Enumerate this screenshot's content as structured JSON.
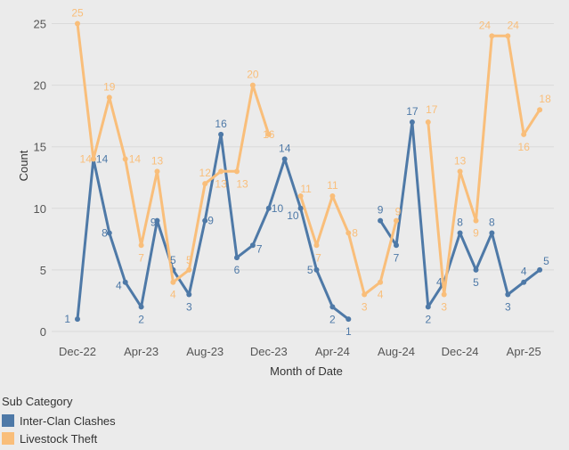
{
  "chart_data": {
    "type": "line",
    "title": "",
    "xlabel": "Month of Date",
    "ylabel": "Count",
    "ylim": [
      0,
      26
    ],
    "yticks": [
      0,
      5,
      10,
      15,
      20,
      25
    ],
    "grid": true,
    "x": [
      "Dec-22",
      "Jan-23",
      "Feb-23",
      "Mar-23",
      "Apr-23",
      "May-23",
      "Jun-23",
      "Jul-23",
      "Aug-23",
      "Sep-23",
      "Oct-23",
      "Nov-23",
      "Dec-23",
      "Jan-24",
      "Feb-24",
      "Mar-24",
      "Apr-24",
      "May-24",
      "Jun-24",
      "Jul-24",
      "Aug-24",
      "Sep-24",
      "Oct-24",
      "Nov-24",
      "Dec-24",
      "Jan-25",
      "Feb-25",
      "Mar-25",
      "Apr-25",
      "May-25",
      "Jun-25"
    ],
    "xtick_labels": [
      "Dec-22",
      "Apr-23",
      "Aug-23",
      "Dec-23",
      "Apr-24",
      "Aug-24",
      "Dec-24",
      "Apr-25"
    ],
    "series": [
      {
        "name": "Inter-Clan Clashes",
        "color": "#4e79a7",
        "values": [
          1,
          14,
          8,
          4,
          2,
          9,
          5,
          3,
          9,
          16,
          6,
          7,
          10,
          14,
          10,
          5,
          2,
          1,
          null,
          9,
          7,
          17,
          2,
          4,
          8,
          5,
          8,
          3,
          4,
          5,
          null
        ]
      },
      {
        "name": "Livestock Theft",
        "color": "#f9be7a",
        "values": [
          25,
          14,
          19,
          14,
          7,
          13,
          4,
          5,
          12,
          13,
          13,
          20,
          16,
          null,
          11,
          7,
          11,
          8,
          3,
          4,
          9,
          null,
          17,
          3,
          13,
          9,
          24,
          24,
          16,
          18,
          null
        ]
      }
    ]
  },
  "legend": {
    "title": "Sub Category",
    "items": [
      {
        "label": "Inter-Clan Clashes",
        "color": "#4e79a7"
      },
      {
        "label": "Livestock Theft",
        "color": "#f9be7a"
      }
    ]
  }
}
